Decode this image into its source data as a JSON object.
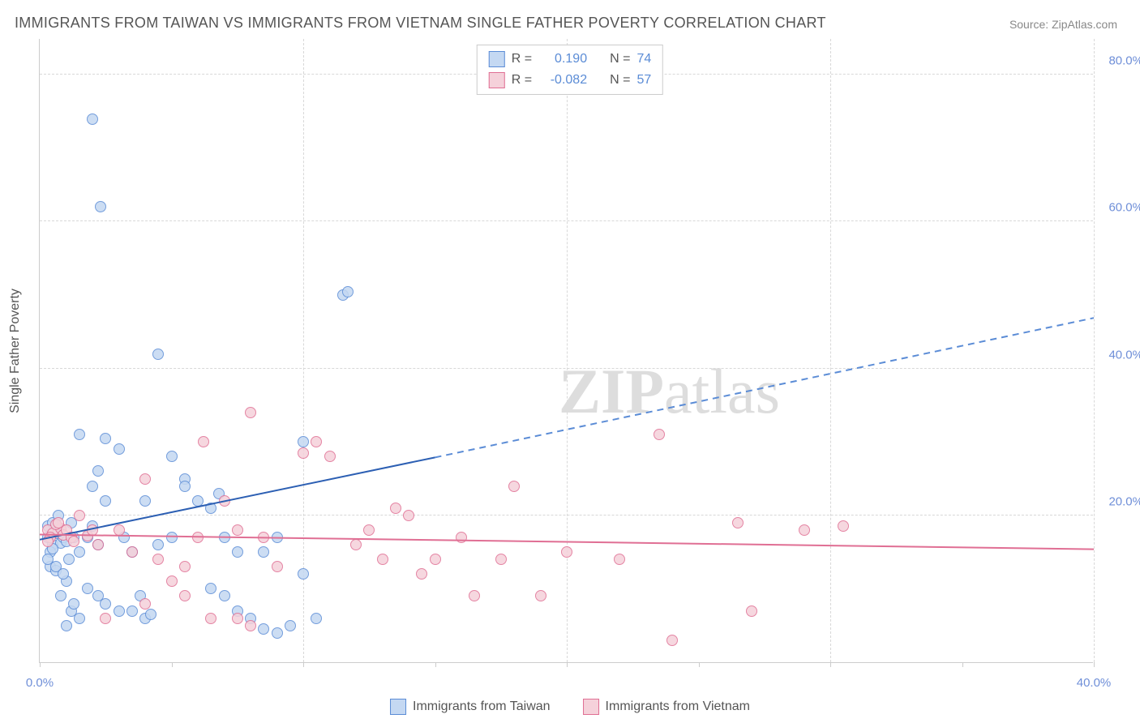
{
  "title": "IMMIGRANTS FROM TAIWAN VS IMMIGRANTS FROM VIETNAM SINGLE FATHER POVERTY CORRELATION CHART",
  "source": "Source: ZipAtlas.com",
  "y_axis_label": "Single Father Poverty",
  "watermark": {
    "bold": "ZIP",
    "rest": "atlas"
  },
  "chart": {
    "type": "scatter",
    "background_color": "#ffffff",
    "grid_color": "#d8d8d8",
    "axis_color": "#cccccc",
    "xlim": [
      0,
      40
    ],
    "ylim": [
      0,
      85
    ],
    "xticks": [
      0,
      10,
      20,
      30,
      40
    ],
    "xtick_labels": [
      "0.0%",
      "",
      "",
      "",
      "40.0%"
    ],
    "yticks": [
      20,
      40,
      60,
      80
    ],
    "ytick_labels": [
      "20.0%",
      "40.0%",
      "60.0%",
      "80.0%"
    ],
    "x_tick_positions_minor": [
      0,
      5,
      10,
      15,
      20,
      25,
      30,
      35,
      40
    ],
    "series": [
      {
        "name": "Immigrants from Taiwan",
        "color_fill": "#c4d8f2",
        "color_stroke": "#5b8cd6",
        "marker_size": 14,
        "r_value": "0.190",
        "n_value": "74",
        "trend": {
          "x1": 0,
          "y1": 16.8,
          "x2_solid": 15,
          "y2_solid": 28,
          "x2": 40,
          "y2": 47,
          "solid_color": "#2c5fb3",
          "dash_color": "#5b8cd6",
          "width": 2
        },
        "points": [
          [
            0.3,
            17
          ],
          [
            0.5,
            16
          ],
          [
            0.7,
            18
          ],
          [
            0.4,
            15
          ],
          [
            0.6,
            17.5
          ],
          [
            0.8,
            16.2
          ],
          [
            0.3,
            18.5
          ],
          [
            0.5,
            15.5
          ],
          [
            0.9,
            17
          ],
          [
            1.0,
            16.5
          ],
          [
            1.2,
            19
          ],
          [
            1.1,
            14
          ],
          [
            1.3,
            17
          ],
          [
            0.4,
            13
          ],
          [
            0.6,
            12.5
          ],
          [
            1.0,
            11
          ],
          [
            1.5,
            15
          ],
          [
            1.8,
            17
          ],
          [
            2.0,
            18.5
          ],
          [
            2.2,
            16
          ],
          [
            1.5,
            31
          ],
          [
            2.5,
            30.5
          ],
          [
            3.0,
            29
          ],
          [
            2.2,
            26
          ],
          [
            2.0,
            24
          ],
          [
            2.5,
            22
          ],
          [
            3.2,
            17
          ],
          [
            3.5,
            15
          ],
          [
            1.8,
            10
          ],
          [
            2.2,
            9
          ],
          [
            2.5,
            8
          ],
          [
            3.0,
            7
          ],
          [
            2.0,
            74
          ],
          [
            2.3,
            62
          ],
          [
            4.5,
            42
          ],
          [
            4.0,
            22
          ],
          [
            4.5,
            16
          ],
          [
            5.0,
            17
          ],
          [
            5.5,
            25
          ],
          [
            5.0,
            28
          ],
          [
            5.5,
            24
          ],
          [
            6.0,
            22
          ],
          [
            6.5,
            21
          ],
          [
            6.8,
            23
          ],
          [
            7.0,
            17
          ],
          [
            7.5,
            15
          ],
          [
            6.5,
            10
          ],
          [
            7.0,
            9
          ],
          [
            7.5,
            7
          ],
          [
            8.0,
            6
          ],
          [
            8.5,
            4.5
          ],
          [
            9.0,
            4
          ],
          [
            9.5,
            5
          ],
          [
            8.5,
            15
          ],
          [
            9.0,
            17
          ],
          [
            10.0,
            12
          ],
          [
            10.5,
            6
          ],
          [
            10.0,
            30
          ],
          [
            11.5,
            50
          ],
          [
            11.7,
            50.5
          ],
          [
            1.2,
            7
          ],
          [
            1.5,
            6
          ],
          [
            1.0,
            5
          ],
          [
            0.8,
            9
          ],
          [
            1.3,
            8
          ],
          [
            0.5,
            19
          ],
          [
            0.7,
            20
          ],
          [
            0.3,
            14
          ],
          [
            0.6,
            13
          ],
          [
            0.9,
            12
          ],
          [
            3.5,
            7
          ],
          [
            4.0,
            6
          ],
          [
            4.2,
            6.5
          ],
          [
            3.8,
            9
          ]
        ]
      },
      {
        "name": "Immigrants from Vietnam",
        "color_fill": "#f5d1da",
        "color_stroke": "#e06f94",
        "marker_size": 14,
        "r_value": "-0.082",
        "n_value": "57",
        "trend": {
          "x1": 0,
          "y1": 17.5,
          "x2_solid": 40,
          "y2_solid": 15.5,
          "x2": 40,
          "y2": 15.5,
          "solid_color": "#e06f94",
          "dash_color": "#e06f94",
          "width": 2
        },
        "points": [
          [
            0.3,
            18
          ],
          [
            0.5,
            17.5
          ],
          [
            0.8,
            18.2
          ],
          [
            0.4,
            17
          ],
          [
            0.6,
            18.8
          ],
          [
            0.9,
            17.3
          ],
          [
            0.3,
            16.5
          ],
          [
            0.7,
            19
          ],
          [
            1.0,
            18
          ],
          [
            1.2,
            17
          ],
          [
            1.5,
            20
          ],
          [
            1.3,
            16.5
          ],
          [
            1.8,
            17.2
          ],
          [
            2.0,
            18
          ],
          [
            2.2,
            16
          ],
          [
            3.5,
            15
          ],
          [
            4.0,
            25
          ],
          [
            4.5,
            14
          ],
          [
            5.0,
            11
          ],
          [
            5.5,
            13
          ],
          [
            6.0,
            17
          ],
          [
            6.2,
            30
          ],
          [
            7.0,
            22
          ],
          [
            7.5,
            18
          ],
          [
            8.0,
            34
          ],
          [
            8.5,
            17
          ],
          [
            9.0,
            13
          ],
          [
            10.0,
            28.5
          ],
          [
            11.0,
            28
          ],
          [
            12.0,
            16
          ],
          [
            12.5,
            18
          ],
          [
            13.0,
            14
          ],
          [
            13.5,
            21
          ],
          [
            14.0,
            20
          ],
          [
            14.5,
            12
          ],
          [
            15.0,
            14
          ],
          [
            16.0,
            17
          ],
          [
            16.5,
            9
          ],
          [
            17.5,
            14
          ],
          [
            18.0,
            24
          ],
          [
            19.0,
            9
          ],
          [
            20.0,
            15
          ],
          [
            22.0,
            14
          ],
          [
            23.5,
            31
          ],
          [
            24.0,
            3
          ],
          [
            27.0,
            7
          ],
          [
            26.5,
            19
          ],
          [
            29.0,
            18
          ],
          [
            30.5,
            18.5
          ],
          [
            7.5,
            6
          ],
          [
            8.0,
            5
          ],
          [
            6.5,
            6
          ],
          [
            5.5,
            9
          ],
          [
            4.0,
            8
          ],
          [
            10.5,
            30
          ],
          [
            3.0,
            18
          ],
          [
            2.5,
            6
          ]
        ]
      }
    ]
  },
  "stats_box_title_color": "#555555",
  "stats_value_color": "#5b8cd6",
  "legend_labels": [
    "Immigrants from Taiwan",
    "Immigrants from Vietnam"
  ]
}
